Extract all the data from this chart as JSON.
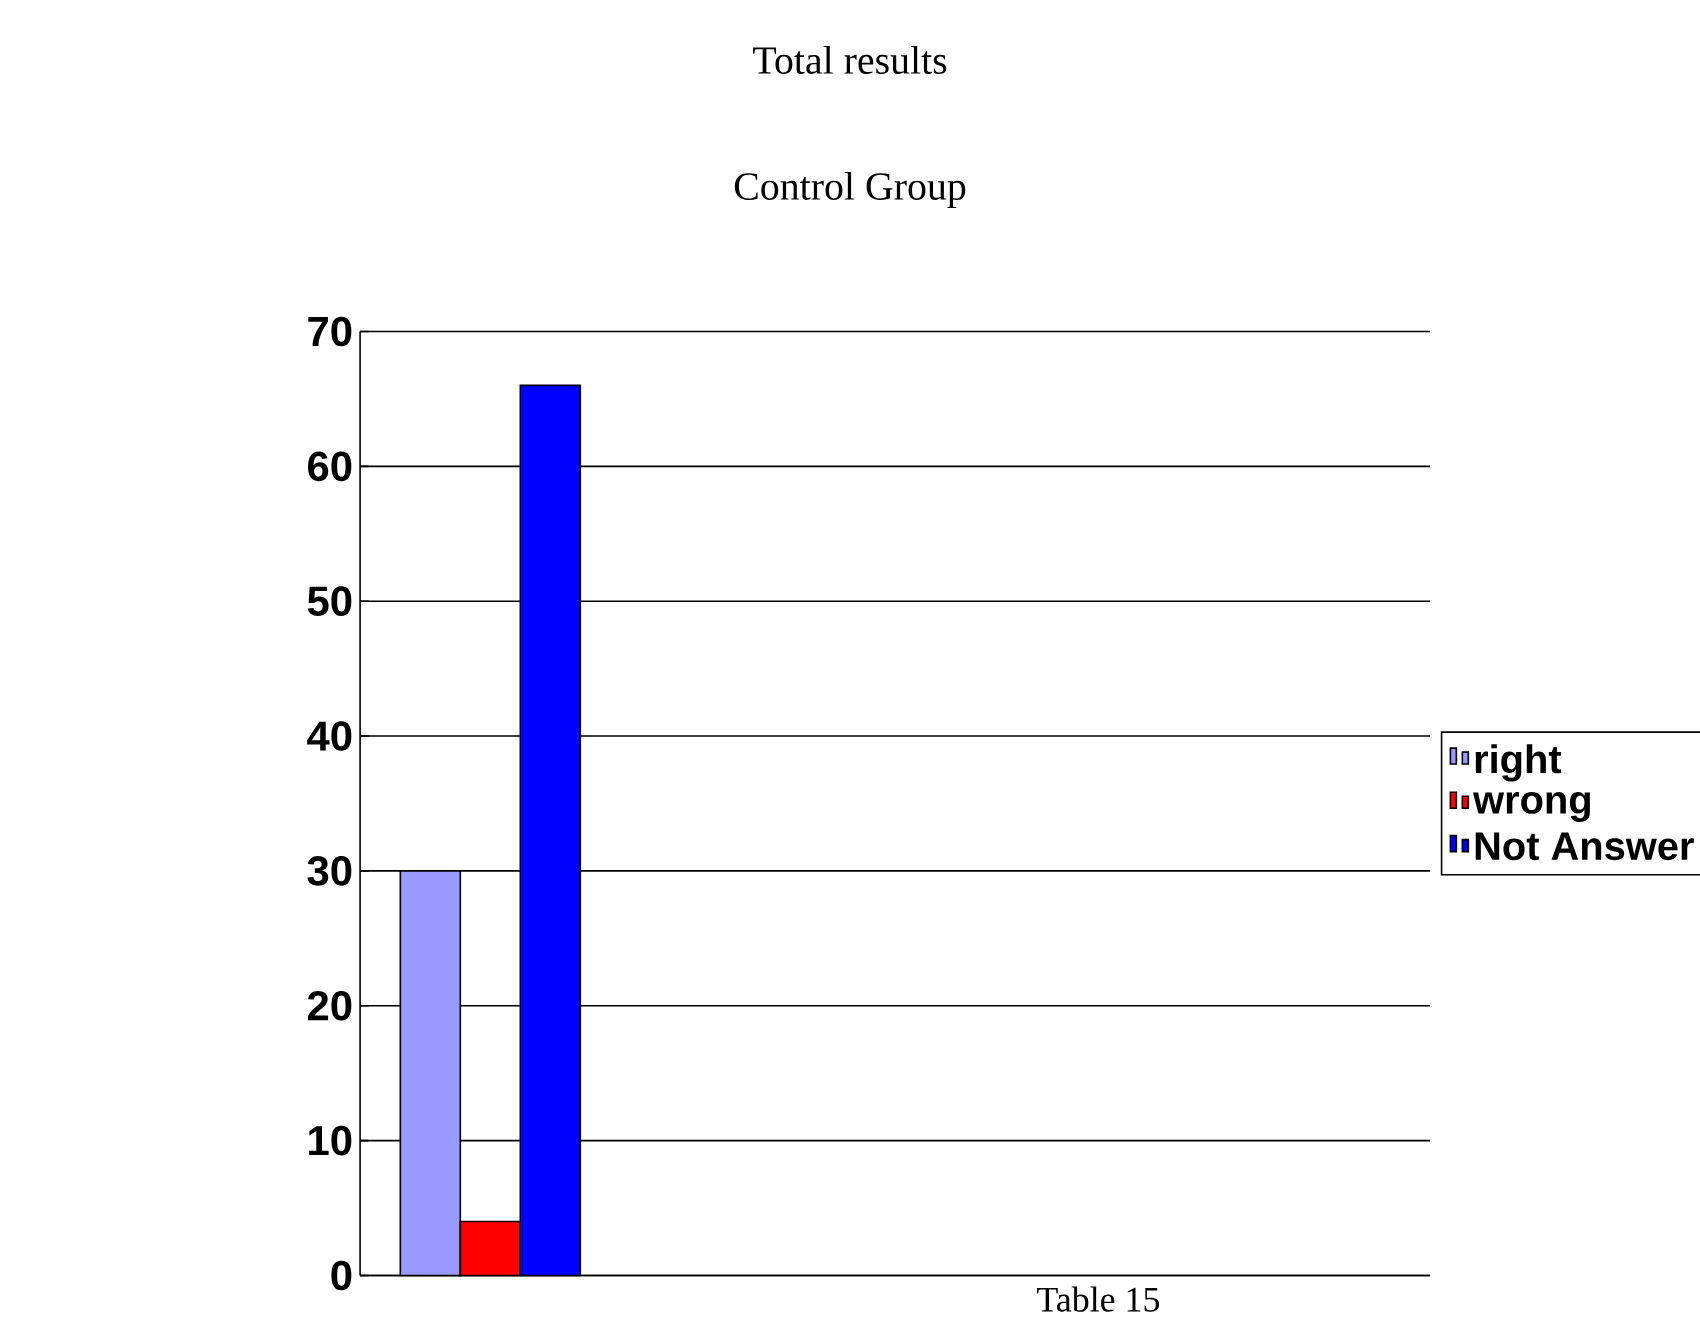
{
  "chart_data": {
    "type": "bar",
    "title": "Total results",
    "subtitle": "Control Group",
    "xlabel": "Table 15",
    "categories": [
      null
    ],
    "series": [
      {
        "name": "right",
        "color": "#9999ff",
        "values": [
          30
        ]
      },
      {
        "name": "wrong",
        "color": "#ff0000",
        "values": [
          4
        ]
      },
      {
        "name": "Not Answer",
        "color": "#0000ff",
        "values": [
          66
        ]
      }
    ],
    "ylim": [
      0,
      70
    ],
    "yticks": [
      0,
      10,
      20,
      30,
      40,
      50,
      60,
      70
    ],
    "grid": "y",
    "legend": "right"
  }
}
